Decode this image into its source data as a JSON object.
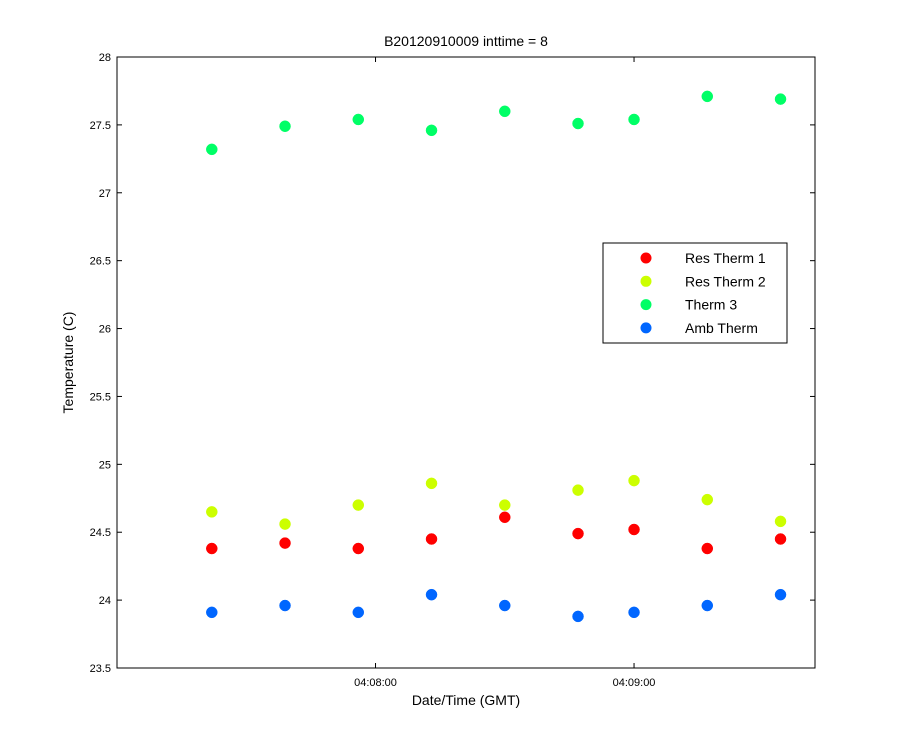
{
  "chart_data": {
    "type": "scatter",
    "title": "B20120910009 inttime = 8",
    "xlabel": "Date/Time (GMT)",
    "ylabel": "Temperature (C)",
    "x_values": [
      "04:07:22",
      "04:07:39",
      "04:07:56",
      "04:08:13",
      "04:08:30",
      "04:08:47",
      "04:09:00",
      "04:09:17",
      "04:09:34"
    ],
    "x_ticks": [
      {
        "label": "04:08:00"
      },
      {
        "label": "04:09:00"
      }
    ],
    "ylim": [
      23.5,
      28
    ],
    "y_ticks": [
      "23.5",
      "24",
      "24.5",
      "25",
      "25.5",
      "26",
      "26.5",
      "27",
      "27.5",
      "28"
    ],
    "grid": false,
    "legend_position": "right",
    "series": [
      {
        "name": "Res Therm 1",
        "color": "#ff0000",
        "values": [
          24.38,
          24.42,
          24.38,
          24.45,
          24.61,
          24.49,
          24.52,
          24.38,
          24.45
        ]
      },
      {
        "name": "Res Therm 2",
        "color": "#ccff00",
        "values": [
          24.65,
          24.56,
          24.7,
          24.86,
          24.7,
          24.81,
          24.88,
          24.74,
          24.58
        ]
      },
      {
        "name": "Therm 3",
        "color": "#00ff66",
        "values": [
          27.32,
          27.49,
          27.54,
          27.46,
          27.6,
          27.51,
          27.54,
          27.71,
          27.69
        ]
      },
      {
        "name": "Amb Therm",
        "color": "#0066ff",
        "values": [
          23.91,
          23.96,
          23.91,
          24.04,
          23.96,
          23.88,
          23.91,
          23.96,
          24.04
        ]
      }
    ]
  }
}
